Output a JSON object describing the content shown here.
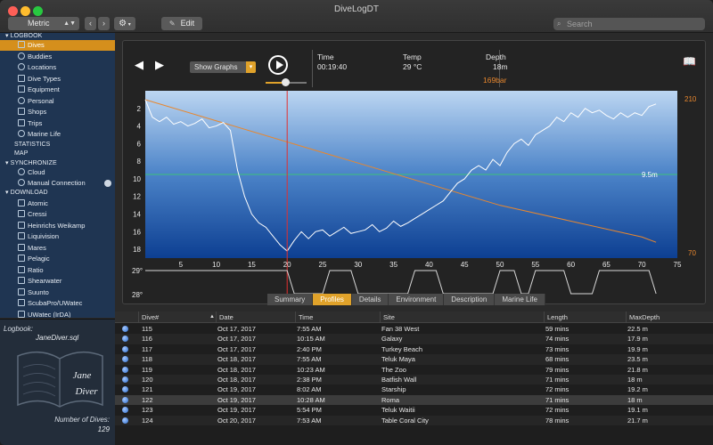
{
  "window": {
    "title": "DiveLogDT"
  },
  "toolbar": {
    "units_select": "Metric",
    "edit_label": "Edit",
    "search_placeholder": "Search"
  },
  "sidebar": {
    "logbook_header": "LOGBOOK",
    "logbook_items": [
      "Dives",
      "Buddies",
      "Locations",
      "Dive Types",
      "Equipment",
      "Personal",
      "Shops",
      "Trips",
      "Marine Life"
    ],
    "statistics": "STATISTICS",
    "map": "MAP",
    "sync_header": "SYNCHRONIZE",
    "sync_items": [
      "Cloud",
      "Manual Connection"
    ],
    "download_header": "DOWNLOAD",
    "download_items": [
      "Atomic",
      "Cressi",
      "Heinrichs Weikamp",
      "Liquivision",
      "Mares",
      "Pelagic",
      "Ratio",
      "Shearwater",
      "Suunto",
      "ScubaPro/UWatec",
      "UWatec (IrDA)"
    ]
  },
  "logbook_info": {
    "label": "Logbook:",
    "file": "JaneDiver.sql",
    "book_line1": "Jane",
    "book_line2": "Diver",
    "num_label": "Number of Dives:",
    "num_value": "129"
  },
  "controls": {
    "graphs_select": "Show Graphs",
    "time_label": "Time",
    "time_value": "00:19:40",
    "temp_label": "Temp",
    "temp_value": "29 °C",
    "depth_label": "Depth",
    "depth_value": "18m",
    "pressure_value": "169bar",
    "playback_position": 0.5
  },
  "chart_data": {
    "type": "line",
    "x_ticks": [
      "5",
      "10",
      "15",
      "20",
      "25",
      "30",
      "35",
      "40",
      "45",
      "50",
      "55",
      "60",
      "65",
      "70",
      "75"
    ],
    "xlim": [
      0,
      75
    ],
    "depth_ticks": [
      "2",
      "4",
      "6",
      "8",
      "10",
      "12",
      "14",
      "16",
      "18"
    ],
    "depth_lim": [
      0,
      19
    ],
    "pressure_ticks": [
      "210",
      "70"
    ],
    "temp_ticks": [
      "29°",
      "28°"
    ],
    "marker_depth_label": "9.5m",
    "marker_depth": 9.5,
    "cursor_x": 20,
    "series": [
      {
        "values_x": [
          0,
          1,
          2,
          3,
          4,
          5,
          6,
          7,
          8,
          9,
          10,
          11,
          12,
          13,
          14,
          15,
          16,
          17,
          18,
          19,
          20,
          21,
          22,
          23,
          24,
          25,
          26,
          27,
          28,
          29,
          30,
          31,
          32,
          33,
          34,
          35,
          36,
          37,
          38,
          39,
          40,
          41,
          42,
          43,
          44,
          45,
          46,
          47,
          48,
          49,
          50,
          51,
          52,
          53,
          54,
          55,
          56,
          57,
          58,
          59,
          60,
          61,
          62,
          63,
          64,
          65,
          66,
          67,
          68,
          69,
          70,
          71,
          72
        ],
        "values_y": [
          1,
          3,
          3.5,
          3,
          3.8,
          3.5,
          4,
          3.7,
          3.2,
          4.2,
          4,
          3.6,
          4.5,
          9,
          12,
          14,
          15,
          15.5,
          16.5,
          17.5,
          18.2,
          17,
          16,
          16.8,
          16,
          15.8,
          16.5,
          16,
          15.5,
          16.2,
          16,
          15.8,
          15.2,
          16,
          15.6,
          14.8,
          15.4,
          15,
          14.5,
          14,
          13.5,
          13,
          12.5,
          11.5,
          10.5,
          10,
          9,
          8.5,
          9,
          7.8,
          8.5,
          7,
          6,
          5.5,
          6.2,
          5,
          4.5,
          4,
          3,
          3.5,
          2.5,
          3,
          2,
          2.5,
          2.2,
          2.8,
          3.2,
          2.5,
          3,
          2.5,
          2.8,
          1.8,
          1.5
        ]
      },
      {
        "values_x": [
          0,
          10,
          20,
          30,
          40,
          50,
          60,
          70,
          72
        ],
        "values_y": [
          215,
          195,
          175,
          155,
          135,
          115,
          100,
          85,
          80
        ]
      },
      {
        "values_x": [
          0,
          20,
          21,
          22,
          25,
          26,
          29,
          30,
          37,
          38,
          41,
          42,
          49,
          50,
          52,
          53,
          54,
          55,
          59,
          60,
          63,
          64,
          71,
          72
        ],
        "values_y": [
          29,
          29,
          28,
          28,
          28,
          29,
          29,
          28,
          28,
          29,
          29,
          28,
          28,
          29,
          29,
          28,
          28,
          29,
          29,
          28,
          28,
          29,
          29,
          28
        ]
      }
    ]
  },
  "tabs": [
    "Summary",
    "Profiles",
    "Details",
    "Environment",
    "Description",
    "Marine Life"
  ],
  "active_tab": "Profiles",
  "table": {
    "columns": [
      "Dive#",
      "Date",
      "Time",
      "Site",
      "Length",
      "MaxDepth"
    ],
    "rows": [
      [
        "115",
        "Oct 17, 2017",
        "7:55 AM",
        "Fan 38 West",
        "59 mins",
        "22.5 m"
      ],
      [
        "116",
        "Oct 17, 2017",
        "10:15 AM",
        "Galaxy",
        "74 mins",
        "17.9 m"
      ],
      [
        "117",
        "Oct 17, 2017",
        "2:40 PM",
        "Turkey Beach",
        "73 mins",
        "19.9 m"
      ],
      [
        "118",
        "Oct 18, 2017",
        "7:55 AM",
        "Teluk Maya",
        "68 mins",
        "23.5 m"
      ],
      [
        "119",
        "Oct 18, 2017",
        "10:23 AM",
        "The Zoo",
        "79 mins",
        "21.8 m"
      ],
      [
        "120",
        "Oct 18, 2017",
        "2:38 PM",
        "Batfish Wall",
        "71 mins",
        "18 m"
      ],
      [
        "121",
        "Oct 19, 2017",
        "8:02 AM",
        "Starship",
        "72 mins",
        "19.2 m"
      ],
      [
        "122",
        "Oct 19, 2017",
        "10:28 AM",
        "Roma",
        "71 mins",
        "18 m"
      ],
      [
        "123",
        "Oct 19, 2017",
        "5:54 PM",
        "Teluk Waitii",
        "72 mins",
        "19.1 m"
      ],
      [
        "124",
        "Oct 20, 2017",
        "7:53 AM",
        "Table Coral City",
        "78 mins",
        "21.7 m"
      ]
    ],
    "selected_row": 7
  },
  "colors": {
    "accent": "#e0a22a",
    "sidebar_bg": "#1f3552",
    "depth_line": "#ffffff",
    "pressure_line": "#e8872e",
    "marker_line": "#3ec27a",
    "cursor_line": "#e23030"
  }
}
